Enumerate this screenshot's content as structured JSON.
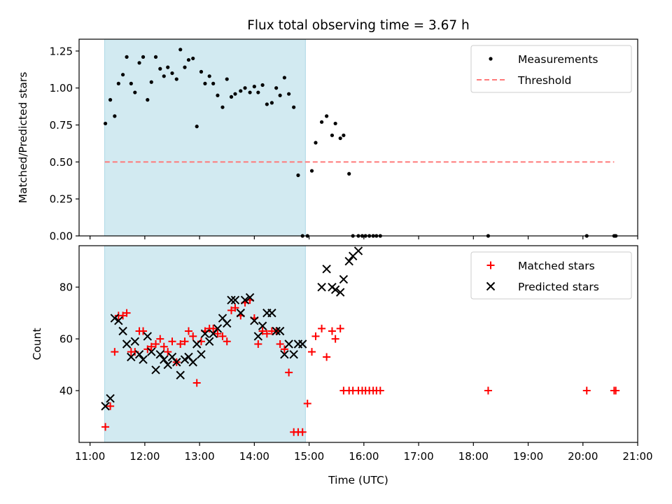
{
  "chart_data": {
    "title": "Flux total observing time = 3.67 h",
    "xlabel": "Time (UTC)",
    "x_unit": "hours UTC",
    "xlim": [
      10.8,
      21.0
    ],
    "x_ticks": [
      11,
      12,
      13,
      14,
      15,
      16,
      17,
      18,
      19,
      20,
      21
    ],
    "x_tick_labels": [
      "11:00",
      "12:00",
      "13:00",
      "14:00",
      "15:00",
      "16:00",
      "17:00",
      "18:00",
      "19:00",
      "20:00",
      "21:00"
    ],
    "shaded_span": {
      "start": 11.267,
      "end": 14.933,
      "color": "#add8e6"
    },
    "panels": [
      {
        "id": "top",
        "type": "scatter",
        "ylabel": "Matched/Predicted stars",
        "ylim": [
          0,
          1.33
        ],
        "y_ticks": [
          0,
          0.25,
          0.5,
          0.75,
          1.0,
          1.25
        ],
        "y_tick_labels": [
          "0.00",
          "0.25",
          "0.50",
          "0.75",
          "1.00",
          "1.25"
        ],
        "legend": {
          "position": "top-right",
          "entries": [
            "Measurements",
            "Threshold"
          ]
        },
        "series": [
          {
            "name": "Measurements",
            "type": "scatter",
            "marker": "dot",
            "color": "#000000",
            "x": [
              11.28,
              11.37,
              11.45,
              11.52,
              11.6,
              11.67,
              11.75,
              11.82,
              11.9,
              11.97,
              12.05,
              12.12,
              12.2,
              12.28,
              12.35,
              12.42,
              12.5,
              12.58,
              12.65,
              12.73,
              12.8,
              12.88,
              12.95,
              13.03,
              13.1,
              13.18,
              13.25,
              13.33,
              13.42,
              13.5,
              13.58,
              13.65,
              13.75,
              13.83,
              13.92,
              14.0,
              14.07,
              14.15,
              14.23,
              14.32,
              14.4,
              14.47,
              14.55,
              14.63,
              14.72,
              14.8,
              14.88,
              14.97,
              15.05,
              15.12,
              15.23,
              15.32,
              15.42,
              15.48,
              15.57,
              15.63,
              15.73,
              15.8,
              15.9,
              15.97,
              16.03,
              16.1,
              16.17,
              16.23,
              16.3,
              18.27,
              20.07,
              20.57,
              20.6
            ],
            "y": [
              0.76,
              0.92,
              0.81,
              1.03,
              1.09,
              1.21,
              1.03,
              0.97,
              1.17,
              1.21,
              0.92,
              1.04,
              1.21,
              1.13,
              1.08,
              1.14,
              1.1,
              1.06,
              1.26,
              1.14,
              1.19,
              1.2,
              0.74,
              1.11,
              1.03,
              1.08,
              1.03,
              0.95,
              0.87,
              1.06,
              0.94,
              0.96,
              0.98,
              1.0,
              0.97,
              1.01,
              0.97,
              1.02,
              0.89,
              0.9,
              1.0,
              0.95,
              1.07,
              0.96,
              0.87,
              0.41,
              0.0,
              0.0,
              0.44,
              0.63,
              0.77,
              0.81,
              0.68,
              0.76,
              0.66,
              0.68,
              0.42,
              0.0,
              0.0,
              0.0,
              0.0,
              0.0,
              0.0,
              0.0,
              0.0,
              0.0,
              0.0,
              0.0,
              0.0
            ]
          },
          {
            "name": "Threshold",
            "type": "line",
            "style": "dashed",
            "color": "#ff7a7a",
            "x": [
              11.27,
              20.57
            ],
            "y": [
              0.5,
              0.5
            ]
          }
        ]
      },
      {
        "id": "bottom",
        "type": "scatter",
        "ylabel": "Count",
        "ylim": [
          20,
          96
        ],
        "y_ticks": [
          40,
          60,
          80
        ],
        "y_tick_labels": [
          "40",
          "60",
          "80"
        ],
        "legend": {
          "position": "top-right",
          "entries": [
            "Matched stars",
            "Predicted stars"
          ]
        },
        "series": [
          {
            "name": "Matched stars",
            "type": "scatter",
            "marker": "plus",
            "color": "#ff0000",
            "x": [
              11.28,
              11.37,
              11.45,
              11.52,
              11.6,
              11.67,
              11.75,
              11.82,
              11.9,
              11.97,
              12.05,
              12.12,
              12.2,
              12.28,
              12.35,
              12.42,
              12.5,
              12.58,
              12.65,
              12.73,
              12.8,
              12.88,
              12.95,
              13.03,
              13.1,
              13.18,
              13.25,
              13.33,
              13.42,
              13.5,
              13.58,
              13.65,
              13.75,
              13.83,
              13.92,
              14.0,
              14.07,
              14.15,
              14.23,
              14.32,
              14.4,
              14.47,
              14.55,
              14.63,
              14.72,
              14.8,
              14.88,
              14.97,
              15.05,
              15.12,
              15.23,
              15.32,
              15.42,
              15.48,
              15.57,
              15.63,
              15.73,
              15.8,
              15.9,
              15.97,
              16.03,
              16.1,
              16.17,
              16.23,
              16.3,
              18.27,
              20.07,
              20.57,
              20.6
            ],
            "y": [
              26,
              34,
              55,
              69,
              69,
              70,
              55,
              55,
              63,
              63,
              56,
              57,
              58,
              60,
              57,
              55,
              59,
              51,
              58,
              59,
              63,
              61,
              43,
              59,
              63,
              64,
              64,
              62,
              61,
              59,
              71,
              72,
              69,
              74,
              75,
              68,
              58,
              63,
              62,
              63,
              63,
              58,
              56,
              47,
              24,
              24,
              24,
              35,
              55,
              61,
              64,
              53,
              63,
              60,
              64,
              40,
              40,
              40,
              40,
              40,
              40,
              40,
              40,
              40,
              40,
              40,
              40,
              40,
              40
            ]
          },
          {
            "name": "Predicted stars",
            "type": "scatter",
            "marker": "x",
            "color": "#000000",
            "x": [
              11.28,
              11.37,
              11.45,
              11.52,
              11.6,
              11.67,
              11.75,
              11.82,
              11.9,
              11.97,
              12.05,
              12.12,
              12.2,
              12.28,
              12.35,
              12.42,
              12.5,
              12.58,
              12.65,
              12.73,
              12.8,
              12.88,
              12.95,
              13.03,
              13.1,
              13.18,
              13.25,
              13.33,
              13.42,
              13.5,
              13.58,
              13.65,
              13.75,
              13.83,
              13.92,
              14.0,
              14.07,
              14.15,
              14.23,
              14.32,
              14.4,
              14.47,
              14.55,
              14.63,
              14.72,
              14.8,
              14.88,
              15.23,
              15.32,
              15.42,
              15.48,
              15.57,
              15.63,
              15.73,
              15.8,
              15.9
            ],
            "y": [
              34,
              37,
              68,
              67,
              63,
              58,
              53,
              59,
              54,
              52,
              61,
              55,
              48,
              54,
              52,
              50,
              53,
              51,
              46,
              52,
              53,
              51,
              58,
              54,
              62,
              59,
              62,
              64,
              68,
              66,
              75,
              75,
              70,
              75,
              76,
              67,
              61,
              65,
              70,
              70,
              63,
              63,
              54,
              58,
              54,
              58,
              58,
              80,
              87,
              80,
              79,
              78,
              83,
              90,
              92,
              94
            ]
          }
        ]
      }
    ]
  }
}
